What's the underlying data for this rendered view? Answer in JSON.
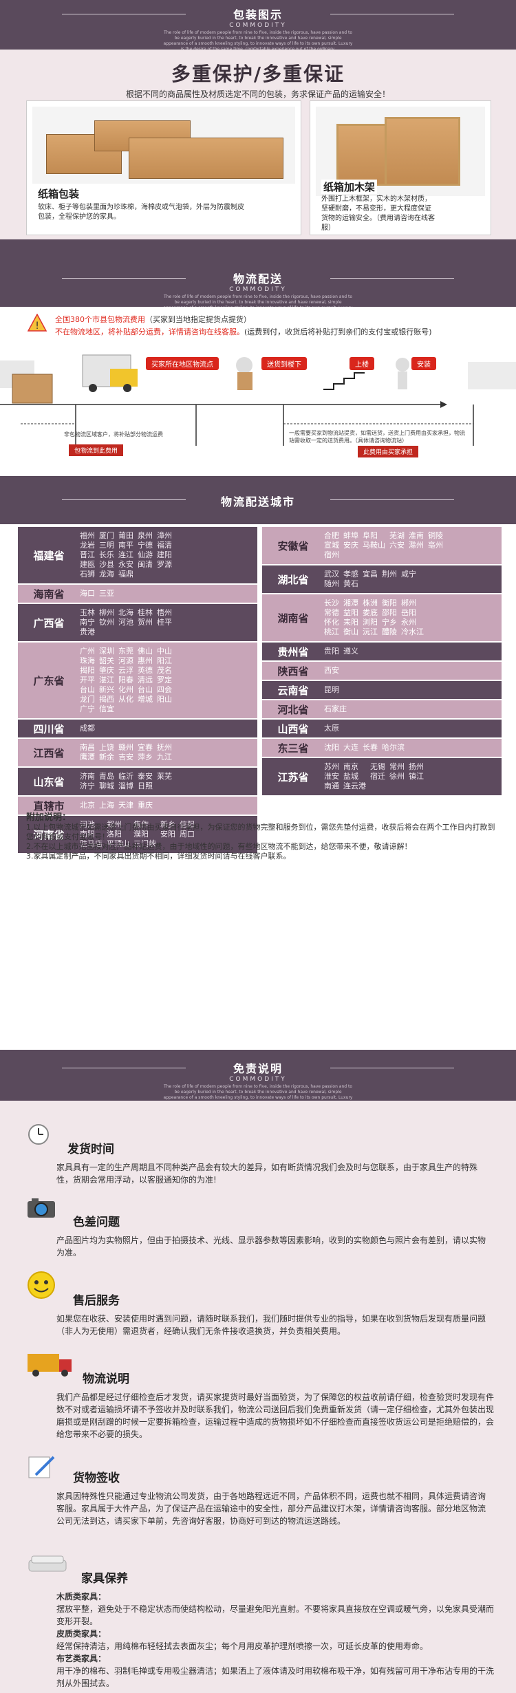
{
  "banners": {
    "pack": {
      "title": "包装图示",
      "sub": "COMMODITY",
      "small": "The role of life of modern people from nine to five, inside the rigorous, have passion and to be eagerly buried in the heart, to break the innovative and have renewal, simple appearance of a smooth kneeling styling, to innovate ways of life to its own pursuit. Luxury is the desire of the same time, comfortable experience out of the ordinary."
    },
    "ship": {
      "title": "物流配送",
      "sub": "COMMODITY",
      "small": "The role of life of modern people from nine to five, inside the rigorous, have passion and to be eagerly buried in the heart, to break the innovative and have renewal, simple appearance of a smooth kneeling styling, to innovate ways of life to its own pursuit. Luxury is the desire of the same time, comfortable experience out of the ordinary."
    },
    "city": {
      "title": "物流配送城市"
    },
    "disclaim": {
      "title": "免责说明",
      "sub": "COMMODITY",
      "small": "The role of life of modern people from nine to five, inside the rigorous, have passion and to be eagerly buried in the heart, to break the innovative and have renewal, simple appearance of a smooth kneeling styling, to innovate ways of life to its own pursuit. Luxury is the desire of the same time, comfortable experience out of the ordinary."
    }
  },
  "pack": {
    "headline": "多重保护/多重保证",
    "desc": "根据不同的商品属性及材质选定不同的包装，务求保证产品的运输安全！",
    "left_title": "纸箱包装",
    "left_text": "软床、柜子等包装里面为珍珠棉，海棉皮或气泡袋，外层为防震制皮包装，全程保护您的家具。",
    "right_title": "纸箱加木架",
    "right_text": "外围打上木框架，实木的木架材质，坚硬耐磨，不易变形，更大程度保证货物的运输安全。（费用请咨询在线客服）"
  },
  "ship": {
    "warn_a": "全国380个市县包物流费用",
    "warn_b": "（买家到当地指定提货点提货）",
    "warn_c": "不在物流地区，将补贴部分运费，详情请咨询在线客服。",
    "warn_d": "(运费到付，收货后将补贴打到亲们的支付宝或银行账号)",
    "step1": "买家所在地区物流点",
    "step2": "送货到楼下",
    "step3": "上楼",
    "step4": "安装",
    "note_left": "非包物流区域客户，将补贴部分物流运费",
    "note_left_tag": "包物流到此费用",
    "note_right": "一般需要买家到物流站提货，如需送货，送货上门费用由买家承担，物流站需收取一定的送货费用。（具体请咨询物流站）",
    "note_right_tag": "此费用由买家承担"
  },
  "cities_left": [
    {
      "prov": "福建省",
      "cities": [
        "福州",
        "厦门",
        "莆田",
        "泉州",
        "漳州",
        "龙岩",
        "三明",
        "南平",
        "宁德",
        "福清",
        "晋江",
        "长乐",
        "连江",
        "仙游",
        "建阳",
        "建瓯",
        "沙县",
        "永安",
        "闽清",
        "罗源",
        "石狮",
        "龙海",
        "福鼎"
      ],
      "cols": 5,
      "style": "dark"
    },
    {
      "prov": "海南省",
      "cities": [
        "海口",
        "三亚"
      ],
      "cols": 5,
      "style": "light"
    },
    {
      "prov": "广西省",
      "cities": [
        "玉林",
        "柳州",
        "北海",
        "桂林",
        "梧州",
        "南宁",
        "钦州",
        "河池",
        "贺州",
        "桂平",
        "贵港"
      ],
      "cols": 5,
      "style": "dark"
    },
    {
      "prov": "广东省",
      "cities": [
        "广州",
        "深圳",
        "东莞",
        "佛山",
        "中山",
        "珠海",
        "韶关",
        "河源",
        "惠州",
        "阳江",
        "揭阳",
        "肇庆",
        "云浮",
        "英德",
        "茂名",
        "开平",
        "湛江",
        "阳春",
        "清远",
        "罗定",
        "台山",
        "新兴",
        "化州",
        "台山",
        "四会",
        "龙门",
        "揭西",
        "从化",
        "增城",
        "阳山",
        "广宁",
        "信宜"
      ],
      "cols": 5,
      "style": "light"
    },
    {
      "prov": "四川省",
      "cities": [
        "成都"
      ],
      "cols": 5,
      "style": "dark"
    },
    {
      "prov": "江西省",
      "cities": [
        "南昌",
        "上饶",
        "赣州",
        "宜春",
        "抚州",
        "鹰潭",
        "新余",
        "吉安",
        "萍乡",
        "九江"
      ],
      "cols": 5,
      "style": "light"
    },
    {
      "prov": "山东省",
      "cities": [
        "济南",
        "青岛",
        "临沂",
        "泰安",
        "莱芜",
        "济宁",
        "聊城",
        "淄博",
        "日照"
      ],
      "cols": 5,
      "style": "dark"
    },
    {
      "prov": "直辖市",
      "cities": [
        "北京",
        "上海",
        "天津",
        "重庆"
      ],
      "cols": 5,
      "style": "light"
    },
    {
      "prov": "河南省",
      "cities": [
        "河池",
        "郑州",
        "焦作",
        "新乡",
        "信阳",
        "南阳",
        "洛阳",
        "濮阳",
        "安阳",
        "周口",
        "驻马店",
        "平顶山",
        "三门峡"
      ],
      "cols": 5,
      "style": "dark"
    }
  ],
  "cities_right": [
    {
      "prov": "安徽省",
      "cities": [
        "合肥",
        "蚌埠",
        "阜阳",
        "芜湖",
        "淮南",
        "铜陵",
        "宣城",
        "安庆",
        "马鞍山",
        "六安",
        "滁州",
        "亳州",
        "宿州"
      ],
      "cols": 6,
      "style": "light"
    },
    {
      "prov": "湖北省",
      "cities": [
        "武汉",
        "孝感",
        "宜昌",
        "荆州",
        "咸宁",
        "随州",
        "黄石"
      ],
      "cols": 5,
      "style": "dark"
    },
    {
      "prov": "湖南省",
      "cities": [
        "长沙",
        "湘潭",
        "株洲",
        "衡阳",
        "郴州",
        "常德",
        "益阳",
        "娄底",
        "邵阳",
        "岳阳",
        "怀化",
        "耒阳",
        "浏阳",
        "宁乡",
        "永州",
        "桃江",
        "衡山",
        "沅江",
        "醴陵",
        "冷水江"
      ],
      "cols": 5,
      "style": "light"
    },
    {
      "prov": "贵州省",
      "cities": [
        "贵阳",
        "遵义"
      ],
      "cols": 5,
      "style": "dark"
    },
    {
      "prov": "陕西省",
      "cities": [
        "西安"
      ],
      "cols": 5,
      "style": "light"
    },
    {
      "prov": "云南省",
      "cities": [
        "昆明"
      ],
      "cols": 5,
      "style": "dark"
    },
    {
      "prov": "河北省",
      "cities": [
        "石家庄"
      ],
      "cols": 5,
      "style": "light"
    },
    {
      "prov": "山西省",
      "cities": [
        "太原"
      ],
      "cols": 5,
      "style": "dark"
    },
    {
      "prov": "东三省",
      "cities": [
        "沈阳",
        "大连",
        "长春",
        "哈尔滨"
      ],
      "cols": 5,
      "style": "light"
    },
    {
      "prov": "江苏省",
      "cities": [
        "苏州",
        "南京",
        "无锡",
        "常州",
        "扬州",
        "淮安",
        "盐城",
        "宿迁",
        "徐州",
        "镇江",
        "南通",
        "连云港"
      ],
      "cols": 5,
      "style": "dark"
    }
  ],
  "notes": {
    "title": "附加说明：",
    "n1": "1.以上包物流城市如需送货上门费用由买家自行承担，为保证您的货物完整和服务到位，需您先垫付运费，收获后将会在两个工作日内打款到您的网银或支付宝账号！",
    "n2": "2.不在以上城市范围按对应产品补贴运费，由于地域性的问题，有些地区物流不能到达，给您带来不便，敬请谅解！",
    "n3": "3.家具属定制产品，不同家具出货期不相同，详细发货时间请与在线客户联系。"
  },
  "disclaim": {
    "t1": "发货时间",
    "p1": "家具具有一定的生产周期且不同种类产品会有较大的差异，如有断货情况我们会及时与您联系，由于家具生产的特殊性，货期会常用浮动，以客服通知你的为准!",
    "t2": "色差问题",
    "p2": "产品图片均为实物照片，但由于拍摄技术、光线、显示器参数等因素影响，收到的实物颜色与照片会有差别，请以实物为准。",
    "t3": "售后服务",
    "p3": "如果您在收获、安装使用时遇到问题，请随时联系我们，我们随时提供专业的指导，如果在收到货物后发现有质量问题（非人为无使用）需退货者，经确认我们无条件接收退换货，并负责相关费用。",
    "t4": "物流说明",
    "p4": "我们产品都是经过仔细检查后才发货，请买家提货时最好当面验货，为了保障您的权益收前请仔细，检查验货时发现有件数不对或者运输损坏请不予签收并及时联系我们，物流公司送回后我们免费重新发货（请一定仔细检查，尤其外包装出现磨损或是刚刮蹭的时候一定要拆箱检查，运输过程中造成的货物损坏如不仔细检查而直接签收货运公司是拒绝赔偿的，会给您带来不必要的损失。",
    "t5": "货物签收",
    "p5": "家具因特殊性只能通过专业物流公司发货，由于各地路程远近不同，产品体积不同，运费也就不相同，具体运费请咨询客服。家具属于大件产品，为了保证产品在运输途中的安全性，部分产品建议打木架，详情请咨询客服。部分地区物流公司无法到达，请买家下单前，先咨询好客服，协商好可到达的物流运送路线。",
    "t6": "家具保养",
    "p6a_t": "木质类家具：",
    "p6a": "摆放平整，避免处于不稳定状态而使结构松动，尽量避免阳光直射。不要将家具直接放在空调或暖气旁，以免家具受潮而变形开裂。",
    "p6b_t": "皮质类家具：",
    "p6b": "经常保持清洁，用纯棉布轻轻拭去表面灰尘；每个月用皮革护理剂喷擦一次，可延长皮革的使用寿命。",
    "p6c_t": "布艺类家具：",
    "p6c": "用干净的棉布、羽制毛掸或专用吸尘器清洁；如果洒上了液体请及时用软棉布吸干净，如有残留可用干净布沾专用的干洗剂从外围拭去。"
  }
}
